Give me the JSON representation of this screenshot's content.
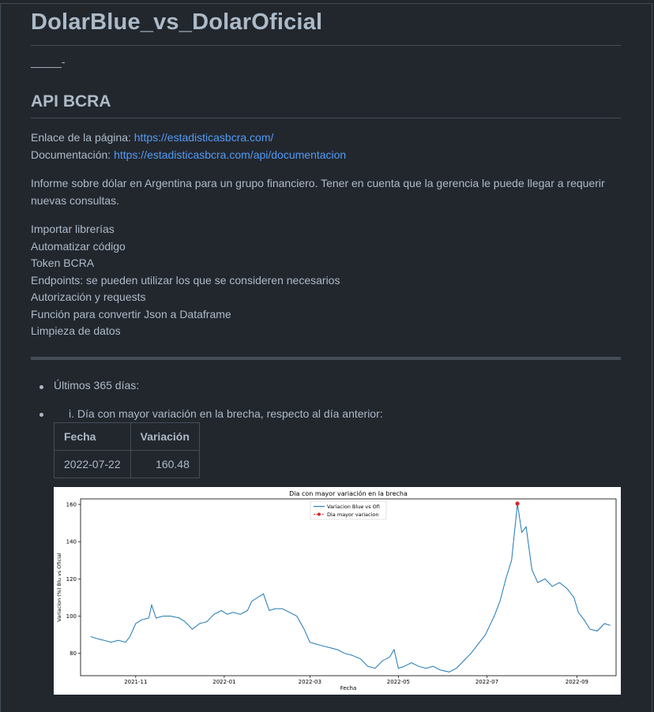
{
  "title": "DolarBlue_vs_DolarOficial",
  "separator_text": "_____-",
  "section_title": "API BCRA",
  "links": {
    "page_label": "Enlace de la página:",
    "page_url": "https://estadisticasbcra.com/",
    "docs_label": "Documentación:",
    "docs_url": "https://estadisticasbcra.com/api/documentacion"
  },
  "description": [
    "Informe sobre dólar en Argentina para un grupo financiero. Tener en cuenta que la gerencia le puede llegar a requerir",
    "nuevas consultas."
  ],
  "steps": [
    "Importar librerías",
    "Automatizar código",
    "Token BCRA",
    "Endpoints: se pueden utilizar los que se consideren necesarios",
    "Autorización y requests",
    "Función para convertir Json a Dataframe",
    "Limpieza de datos"
  ],
  "bullets": [
    "Últimos 365 días:",
    "i. Día con mayor variación en la brecha, respecto al día anterior:"
  ],
  "table": {
    "headers": [
      "Fecha",
      "Variación"
    ],
    "rows": [
      [
        "2022-07-22",
        "160.48"
      ]
    ]
  },
  "chart_data": {
    "type": "line",
    "title": "Dia con mayor variación en la brecha",
    "xlabel": "Fecha",
    "ylabel": "Variacion (%) Blu vs Oficial",
    "ylim": [
      68,
      163
    ],
    "xlim": [
      "2021-09-24",
      "2022-09-28"
    ],
    "yticks": [
      80,
      100,
      120,
      140,
      160
    ],
    "xticks": [
      "2021-11",
      "2022-01",
      "2022-03",
      "2022-05",
      "2022-07",
      "2022-09"
    ],
    "legend_position": "top-center",
    "grid": false,
    "series": [
      {
        "name": "Variacion Blue vs Ofi",
        "color": "#1f77b4",
        "x": [
          "2021-10-01",
          "2021-10-05",
          "2021-10-10",
          "2021-10-15",
          "2021-10-20",
          "2021-10-25",
          "2021-10-28",
          "2021-11-01",
          "2021-11-05",
          "2021-11-10",
          "2021-11-12",
          "2021-11-15",
          "2021-11-20",
          "2021-11-25",
          "2021-12-01",
          "2021-12-05",
          "2021-12-10",
          "2021-12-15",
          "2021-12-20",
          "2021-12-25",
          "2021-12-30",
          "2022-01-03",
          "2022-01-07",
          "2022-01-12",
          "2022-01-17",
          "2022-01-20",
          "2022-01-24",
          "2022-01-28",
          "2022-02-01",
          "2022-02-05",
          "2022-02-10",
          "2022-02-15",
          "2022-02-20",
          "2022-02-25",
          "2022-03-01",
          "2022-03-05",
          "2022-03-10",
          "2022-03-15",
          "2022-03-20",
          "2022-03-25",
          "2022-03-30",
          "2022-04-05",
          "2022-04-10",
          "2022-04-15",
          "2022-04-20",
          "2022-04-25",
          "2022-04-28",
          "2022-05-01",
          "2022-05-05",
          "2022-05-10",
          "2022-05-15",
          "2022-05-20",
          "2022-05-25",
          "2022-05-30",
          "2022-06-05",
          "2022-06-10",
          "2022-06-15",
          "2022-06-20",
          "2022-06-25",
          "2022-06-30",
          "2022-07-03",
          "2022-07-06",
          "2022-07-10",
          "2022-07-14",
          "2022-07-18",
          "2022-07-22",
          "2022-07-25",
          "2022-07-28",
          "2022-08-01",
          "2022-08-05",
          "2022-08-10",
          "2022-08-15",
          "2022-08-20",
          "2022-08-25",
          "2022-08-30",
          "2022-09-02",
          "2022-09-06",
          "2022-09-10",
          "2022-09-15",
          "2022-09-20",
          "2022-09-24"
        ],
        "values": [
          89,
          88,
          87,
          86,
          87,
          86,
          89,
          96,
          98,
          99,
          106,
          99,
          100,
          100,
          99,
          97,
          93,
          96,
          97,
          101,
          103,
          101,
          102,
          101,
          103,
          108,
          110,
          112,
          103,
          104,
          104,
          102,
          100,
          93,
          86,
          85,
          84,
          83,
          82,
          80,
          79,
          77,
          73,
          72,
          76,
          78,
          82,
          72,
          73,
          75,
          73,
          72,
          73,
          71,
          70,
          72,
          76,
          80,
          85,
          90,
          95,
          100,
          108,
          120,
          130,
          160.48,
          145,
          148,
          125,
          118,
          120,
          116,
          118,
          115,
          110,
          102,
          98,
          93,
          92,
          96,
          95
        ]
      }
    ],
    "highlight": {
      "name": "Dia mayor variacion",
      "x": "2022-07-22",
      "y": 160.48,
      "color": "#d62728"
    }
  }
}
